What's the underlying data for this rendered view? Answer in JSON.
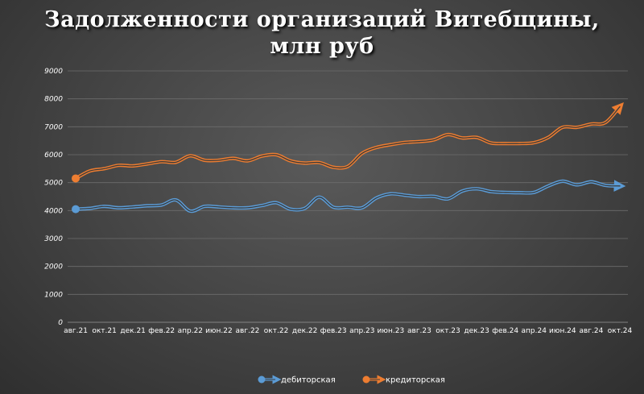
{
  "chart_data": {
    "type": "line",
    "title_lines": [
      "Задолженности организаций Витебщины,",
      "млн руб"
    ],
    "ylim": [
      0,
      9000
    ],
    "yticks": [
      0,
      1000,
      2000,
      3000,
      4000,
      5000,
      6000,
      7000,
      8000,
      9000
    ],
    "grid": true,
    "legend_position": "bottom",
    "categories": [
      "авг.21",
      "сен.21",
      "окт.21",
      "ноя.21",
      "дек.21",
      "янв.22",
      "фев.22",
      "мар.22",
      "апр.22",
      "май.22",
      "июн.22",
      "июл.22",
      "авг.22",
      "сен.22",
      "окт.22",
      "ноя.22",
      "дек.22",
      "янв.23",
      "фев.23",
      "мар.23",
      "апр.23",
      "май.23",
      "июн.23",
      "июл.23",
      "авг.23",
      "сен.23",
      "окт.23",
      "ноя.23",
      "дек.23",
      "янв.24",
      "фев.24",
      "мар.24",
      "апр.24",
      "май.24",
      "июн.24",
      "июл.24",
      "авг.24",
      "сен.24",
      "окт.24"
    ],
    "x_tick_labels": [
      "авг.21",
      "окт.21",
      "дек.21",
      "фев.22",
      "апр.22",
      "июн.22",
      "авг.22",
      "окт.22",
      "дек.22",
      "фев.23",
      "апр.23",
      "июн.23",
      "авг.23",
      "окт.23",
      "дек.23",
      "фев.24",
      "апр.24",
      "июн.24",
      "авг.24",
      "окт.24"
    ],
    "series": [
      {
        "name": "дебиторская",
        "color": "#5b9bd5",
        "values": [
          4050,
          4080,
          4150,
          4100,
          4130,
          4170,
          4200,
          4380,
          3980,
          4150,
          4130,
          4100,
          4100,
          4180,
          4280,
          4050,
          4080,
          4480,
          4120,
          4120,
          4100,
          4450,
          4600,
          4550,
          4500,
          4510,
          4420,
          4700,
          4780,
          4680,
          4650,
          4640,
          4650,
          4880,
          5050,
          4920,
          5030,
          4900,
          4880
        ]
      },
      {
        "name": "кредиторская",
        "color": "#ed7d31",
        "values": [
          5150,
          5420,
          5500,
          5620,
          5600,
          5670,
          5750,
          5730,
          5960,
          5800,
          5800,
          5870,
          5780,
          5950,
          6000,
          5780,
          5700,
          5720,
          5550,
          5580,
          6050,
          6260,
          6360,
          6440,
          6470,
          6530,
          6720,
          6600,
          6620,
          6420,
          6400,
          6400,
          6430,
          6620,
          6980,
          6980,
          7100,
          7150,
          7720
        ]
      }
    ]
  }
}
